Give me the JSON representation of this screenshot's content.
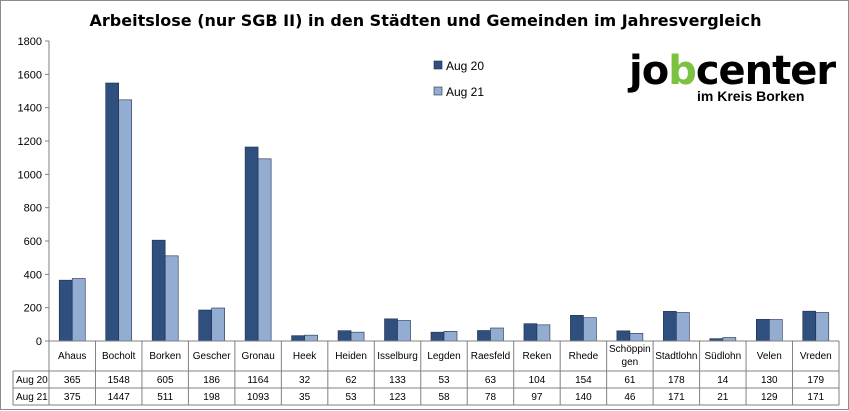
{
  "chart_data": {
    "type": "bar",
    "title": "Arbeitslose (nur SGB II) in den Städten und Gemeinden im Jahresvergleich",
    "categories": [
      "Ahaus",
      "Bocholt",
      "Borken",
      "Gescher",
      "Gronau",
      "Heek",
      "Heiden",
      "Isselburg",
      "Legden",
      "Raesfeld",
      "Reken",
      "Rhede",
      "Schöppingen",
      "Stadtlohn",
      "Südlohn",
      "Velen",
      "Vreden"
    ],
    "category_display": [
      "Ahaus",
      "Bocholt",
      "Borken",
      "Gescher",
      "Gronau",
      "Heek",
      "Heiden",
      "Isselburg",
      "Legden",
      "Raesfeld",
      "Reken",
      "Rhede",
      "Schöppin|gen",
      "Stadtlohn",
      "Südlohn",
      "Velen",
      "Vreden"
    ],
    "series": [
      {
        "name": "Aug 20",
        "color": "#2f4f7f",
        "values": [
          365,
          1548,
          605,
          186,
          1164,
          32,
          62,
          133,
          53,
          63,
          104,
          154,
          61,
          178,
          14,
          130,
          179
        ]
      },
      {
        "name": "Aug 21",
        "color": "#93acd1",
        "values": [
          375,
          1447,
          511,
          198,
          1093,
          35,
          53,
          123,
          58,
          78,
          97,
          140,
          46,
          171,
          21,
          129,
          171
        ]
      }
    ],
    "y_ticks": [
      "0",
      "200",
      "400",
      "600",
      "800",
      "1000",
      "1200",
      "1400",
      "1600",
      "1800"
    ],
    "ylim": [
      0,
      1800
    ],
    "grid": false,
    "legend_position": "top-center",
    "data_table": true
  },
  "logo": {
    "word_start": "jo",
    "word_accent": "b",
    "word_end": "center",
    "subline": "im Kreis Borken"
  }
}
